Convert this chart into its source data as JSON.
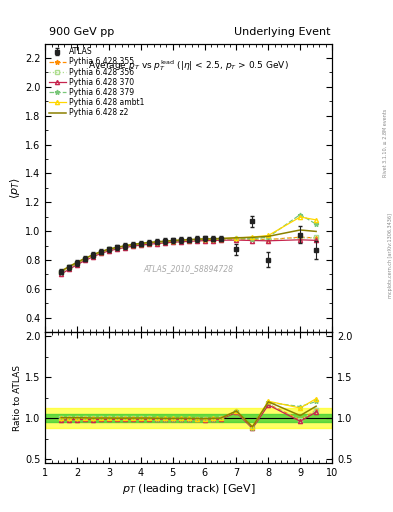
{
  "title_left": "900 GeV pp",
  "title_right": "Underlying Event",
  "watermark": "ATLAS_2010_S8894728",
  "right_label1": "Rivet 3.1.10, ≥ 2.8M events",
  "right_label2": "mcplots.cern.ch [arXiv:1306.3436]",
  "ylabel_main": "$\\langle p_T \\rangle$",
  "ylabel_ratio": "Ratio to ATLAS",
  "xlabel": "$p_T$ (leading track) [GeV]",
  "xlim": [
    1.0,
    10.0
  ],
  "ylim_main": [
    0.3,
    2.3
  ],
  "ylim_ratio": [
    0.45,
    2.05
  ],
  "yticks_main": [
    0.4,
    0.6,
    0.8,
    1.0,
    1.2,
    1.4,
    1.6,
    1.8,
    2.0,
    2.2
  ],
  "yticks_ratio": [
    0.5,
    1.0,
    1.5,
    2.0
  ],
  "atlas_x": [
    1.5,
    1.75,
    2.0,
    2.25,
    2.5,
    2.75,
    3.0,
    3.25,
    3.5,
    3.75,
    4.0,
    4.25,
    4.5,
    4.75,
    5.0,
    5.25,
    5.5,
    5.75,
    6.0,
    6.25,
    6.5,
    7.0,
    7.5,
    8.0,
    9.0,
    9.5
  ],
  "atlas_y": [
    0.718,
    0.75,
    0.779,
    0.808,
    0.835,
    0.857,
    0.873,
    0.887,
    0.897,
    0.906,
    0.913,
    0.919,
    0.926,
    0.931,
    0.936,
    0.938,
    0.942,
    0.946,
    0.95,
    0.947,
    0.948,
    0.876,
    1.068,
    0.803,
    0.976,
    0.87
  ],
  "atlas_yerr": [
    0.018,
    0.018,
    0.018,
    0.018,
    0.018,
    0.018,
    0.018,
    0.018,
    0.018,
    0.018,
    0.018,
    0.018,
    0.018,
    0.018,
    0.018,
    0.018,
    0.018,
    0.018,
    0.018,
    0.018,
    0.018,
    0.038,
    0.038,
    0.05,
    0.06,
    0.065
  ],
  "mc_x": [
    1.5,
    1.75,
    2.0,
    2.25,
    2.5,
    2.75,
    3.0,
    3.25,
    3.5,
    3.75,
    4.0,
    4.25,
    4.5,
    4.75,
    5.0,
    5.25,
    5.5,
    5.75,
    6.0,
    6.25,
    6.5,
    7.0,
    7.5,
    8.0,
    9.0,
    9.5
  ],
  "mc355_y": [
    0.714,
    0.747,
    0.777,
    0.806,
    0.831,
    0.854,
    0.871,
    0.884,
    0.894,
    0.903,
    0.91,
    0.916,
    0.921,
    0.925,
    0.93,
    0.933,
    0.936,
    0.939,
    0.941,
    0.942,
    0.944,
    0.945,
    0.944,
    0.942,
    0.958,
    0.953
  ],
  "mc356_y": [
    0.716,
    0.749,
    0.779,
    0.808,
    0.833,
    0.856,
    0.873,
    0.886,
    0.896,
    0.905,
    0.912,
    0.918,
    0.923,
    0.927,
    0.932,
    0.935,
    0.938,
    0.941,
    0.943,
    0.944,
    0.946,
    0.948,
    0.946,
    0.943,
    0.953,
    0.956
  ],
  "mc370_y": [
    0.702,
    0.736,
    0.767,
    0.797,
    0.822,
    0.846,
    0.863,
    0.876,
    0.886,
    0.896,
    0.903,
    0.909,
    0.914,
    0.918,
    0.923,
    0.926,
    0.929,
    0.932,
    0.934,
    0.935,
    0.937,
    0.938,
    0.935,
    0.933,
    0.94,
    0.936
  ],
  "mc379_y": [
    0.716,
    0.749,
    0.779,
    0.808,
    0.833,
    0.856,
    0.873,
    0.886,
    0.896,
    0.905,
    0.912,
    0.918,
    0.923,
    0.927,
    0.932,
    0.935,
    0.938,
    0.941,
    0.943,
    0.944,
    0.946,
    0.949,
    0.947,
    0.959,
    1.115,
    1.048
  ],
  "mcambt1_y": [
    0.721,
    0.753,
    0.783,
    0.811,
    0.835,
    0.858,
    0.874,
    0.887,
    0.897,
    0.907,
    0.914,
    0.92,
    0.925,
    0.929,
    0.934,
    0.937,
    0.94,
    0.943,
    0.945,
    0.946,
    0.948,
    0.952,
    0.959,
    0.97,
    1.098,
    1.078
  ],
  "mcz2_y": [
    0.723,
    0.755,
    0.784,
    0.812,
    0.836,
    0.859,
    0.875,
    0.888,
    0.898,
    0.908,
    0.915,
    0.921,
    0.926,
    0.93,
    0.935,
    0.938,
    0.941,
    0.944,
    0.946,
    0.947,
    0.949,
    0.954,
    0.957,
    0.964,
    1.008,
    0.998
  ],
  "color_355": "#ff8c00",
  "color_356": "#addd8e",
  "color_370": "#c7254e",
  "color_379": "#78c679",
  "color_ambt1": "#ffd700",
  "color_z2": "#8b8000",
  "color_atlas": "#222222",
  "ratio_band_yellow": 0.12,
  "ratio_band_green": 0.05,
  "background_color": "#ffffff"
}
